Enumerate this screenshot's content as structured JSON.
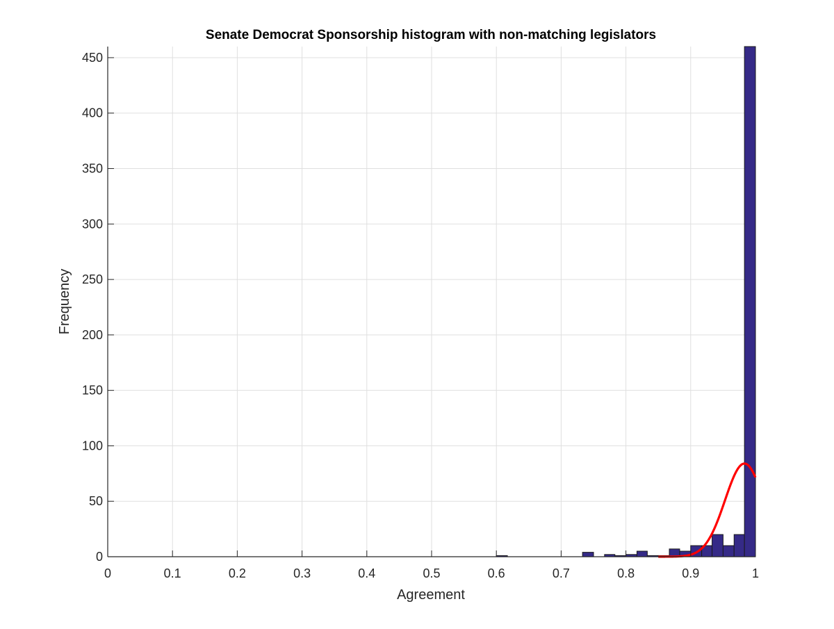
{
  "chart_data": {
    "type": "bar",
    "title": "Senate Democrat Sponsorship histogram with non-matching legislators",
    "xlabel": "Agreement",
    "ylabel": "Frequency",
    "xlim": [
      0,
      1
    ],
    "ylim": [
      0,
      460
    ],
    "xticks": [
      0,
      0.1,
      0.2,
      0.3,
      0.4,
      0.5,
      0.6,
      0.7,
      0.8,
      0.9,
      1
    ],
    "xtick_labels": [
      "0",
      "0.1",
      "0.2",
      "0.3",
      "0.4",
      "0.5",
      "0.6",
      "0.7",
      "0.8",
      "0.9",
      "1"
    ],
    "yticks": [
      0,
      50,
      100,
      150,
      200,
      250,
      300,
      350,
      400,
      450
    ],
    "ytick_labels": [
      "0",
      "50",
      "100",
      "150",
      "200",
      "250",
      "300",
      "350",
      "400",
      "450"
    ],
    "grid": true,
    "bin_width": 0.01667,
    "bins": [
      {
        "x0": 0.6,
        "x1": 0.617,
        "count": 1
      },
      {
        "x0": 0.733,
        "x1": 0.75,
        "count": 4
      },
      {
        "x0": 0.767,
        "x1": 0.783,
        "count": 2
      },
      {
        "x0": 0.783,
        "x1": 0.8,
        "count": 1
      },
      {
        "x0": 0.8,
        "x1": 0.817,
        "count": 2
      },
      {
        "x0": 0.817,
        "x1": 0.833,
        "count": 5
      },
      {
        "x0": 0.833,
        "x1": 0.85,
        "count": 1
      },
      {
        "x0": 0.85,
        "x1": 0.867,
        "count": 1
      },
      {
        "x0": 0.867,
        "x1": 0.883,
        "count": 7
      },
      {
        "x0": 0.883,
        "x1": 0.9,
        "count": 5
      },
      {
        "x0": 0.9,
        "x1": 0.917,
        "count": 10
      },
      {
        "x0": 0.917,
        "x1": 0.933,
        "count": 10
      },
      {
        "x0": 0.933,
        "x1": 0.95,
        "count": 20
      },
      {
        "x0": 0.95,
        "x1": 0.967,
        "count": 10
      },
      {
        "x0": 0.967,
        "x1": 0.983,
        "count": 20
      },
      {
        "x0": 0.983,
        "x1": 1.0,
        "count": 460
      }
    ],
    "fit_curve": {
      "type": "normal",
      "mean": 0.983,
      "std": 0.03,
      "peak": 84,
      "x_start": 0.85,
      "x_end": 1.0
    },
    "colors": {
      "bar_fill": "#352A87",
      "bar_edge": "#1a1a1a",
      "fit_line": "#FF0000",
      "grid": "#DFDFDF",
      "axis": "#262626",
      "text": "#262626"
    }
  }
}
